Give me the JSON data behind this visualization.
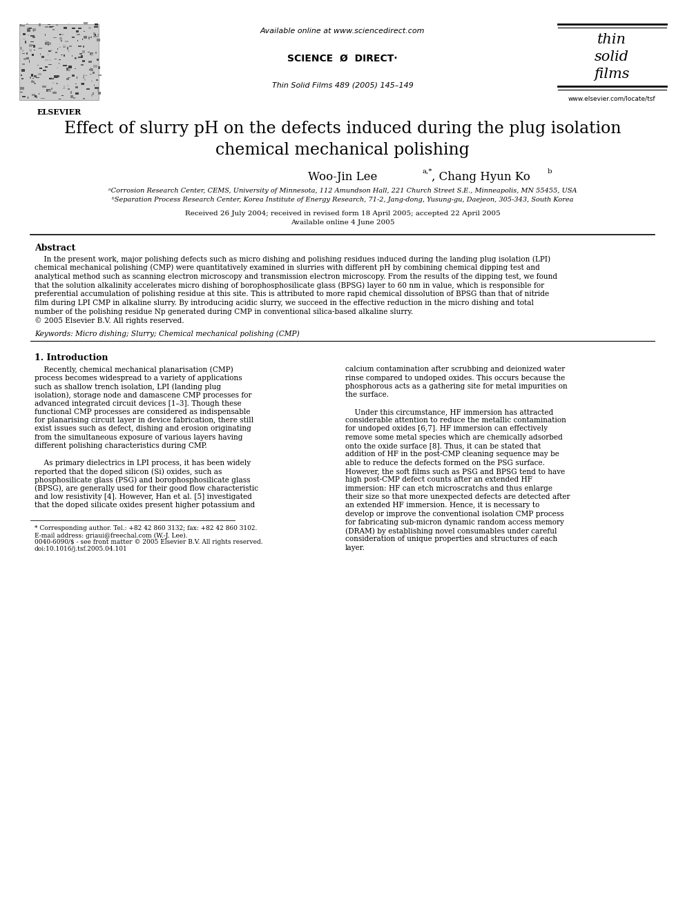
{
  "background_color": "#ffffff",
  "header_url": "Available online at www.sciencedirect.com",
  "journal_name": "Thin Solid Films 489 (2005) 145–149",
  "elsevier_label": "ELSEVIER",
  "sciencedirect_label": "SCIENCE  Ø  DIRECT·",
  "website": "www.elsevier.com/locate/tsf",
  "title_line1": "Effect of slurry pH on the defects induced during the plug isolation",
  "title_line2": "chemical mechanical polishing",
  "affil_a": "ᵃCorrosion Research Center, CEMS, University of Minnesota, 112 Amundson Hall, 221 Church Street S.E., Minneapolis, MN 55455, USA",
  "affil_b": "ᵇSeparation Process Research Center, Korea Institute of Energy Research, 71-2, Jang-dong, Yusung-gu, Daejeon, 305-343, South Korea",
  "received": "Received 26 July 2004; received in revised form 18 April 2005; accepted 22 April 2005",
  "available": "Available online 4 June 2005",
  "abstract_title": "Abstract",
  "keywords": "Keywords: Micro dishing; Slurry; Chemical mechanical polishing (CMP)",
  "section1_title": "1. Introduction",
  "footnote_star": "* Corresponding author. Tel.: +82 42 860 3132; fax: +82 42 860 3102.",
  "footnote_email": "E-mail address: griaui@freechal.com (W.-J. Lee).",
  "footnote_issn": "0040-6090/$ - see front matter © 2005 Elsevier B.V. All rights reserved.",
  "footnote_doi": "doi:10.1016/j.tsf.2005.04.101",
  "abstract_lines": [
    "    In the present work, major polishing defects such as micro dishing and polishing residues induced during the landing plug isolation (LPI)",
    "chemical mechanical polishing (CMP) were quantitatively examined in slurries with different pH by combining chemical dipping test and",
    "analytical method such as scanning electron microscopy and transmission electron microscopy. From the results of the dipping test, we found",
    "that the solution alkalinity accelerates micro dishing of borophosphosilicate glass (BPSG) layer to 60 nm in value, which is responsible for",
    "preferential accumulation of polishing residue at this site. This is attributed to more rapid chemical dissolution of BPSG than that of nitride",
    "film during LPI CMP in alkaline slurry. By introducing acidic slurry, we succeed in the effective reduction in the micro dishing and total",
    "number of the polishing residue Np generated during CMP in conventional silica-based alkaline slurry.",
    "© 2005 Elsevier B.V. All rights reserved."
  ],
  "col1_lines": [
    "    Recently, chemical mechanical planarisation (CMP)",
    "process becomes widespread to a variety of applications",
    "such as shallow trench isolation, LPI (landing plug",
    "isolation), storage node and damascene CMP processes for",
    "advanced integrated circuit devices [1–3]. Though these",
    "functional CMP processes are considered as indispensable",
    "for planarising circuit layer in device fabrication, there still",
    "exist issues such as defect, dishing and erosion originating",
    "from the simultaneous exposure of various layers having",
    "different polishing characteristics during CMP.",
    "",
    "    As primary dielectrics in LPI process, it has been widely",
    "reported that the doped silicon (Si) oxides, such as",
    "phosphosilicate glass (PSG) and borophosphosilicate glass",
    "(BPSG), are generally used for their good flow characteristic",
    "and low resistivity [4]. However, Han et al. [5] investigated",
    "that the doped silicate oxides present higher potassium and"
  ],
  "col2_lines": [
    "calcium contamination after scrubbing and deionized water",
    "rinse compared to undoped oxides. This occurs because the",
    "phosphorous acts as a gathering site for metal impurities on",
    "the surface.",
    "",
    "    Under this circumstance, HF immersion has attracted",
    "considerable attention to reduce the metallic contamination",
    "for undoped oxides [6,7]. HF immersion can effectively",
    "remove some metal species which are chemically adsorbed",
    "onto the oxide surface [8]. Thus, it can be stated that",
    "addition of HF in the post-CMP cleaning sequence may be",
    "able to reduce the defects formed on the PSG surface.",
    "However, the soft films such as PSG and BPSG tend to have",
    "high post-CMP defect counts after an extended HF",
    "immersion: HF can etch microscratchs and thus enlarge",
    "their size so that more unexpected defects are detected after",
    "an extended HF immersion. Hence, it is necessary to",
    "develop or improve the conventional isolation CMP process",
    "for fabricating sub-micron dynamic random access memory",
    "(DRAM) by establishing novel consumables under careful",
    "consideration of unique properties and structures of each",
    "layer."
  ]
}
